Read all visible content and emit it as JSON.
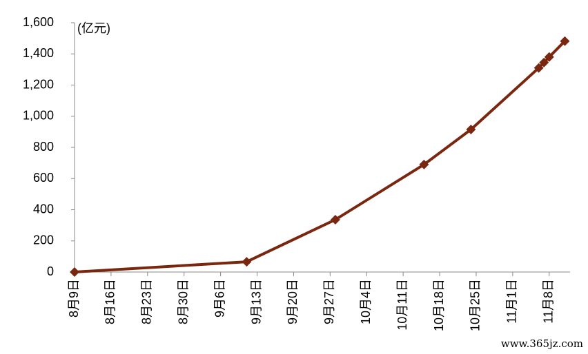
{
  "chart_data": {
    "type": "line",
    "y_unit_label": "(亿元)",
    "x": [
      "8月9日",
      "9月11日",
      "9月28日",
      "10月15日",
      "10月24日",
      "11月6日",
      "11月7日",
      "11月8日",
      "11月11日"
    ],
    "series": [
      {
        "color": "#7a2710",
        "values": [
          0,
          66,
          336,
          690,
          915,
          1310,
          1345,
          1380,
          1482
        ]
      }
    ],
    "xlim": [
      "8月9日",
      "11月12日"
    ],
    "xticks": [
      "8月9日",
      "8月16日",
      "8月23日",
      "8月30日",
      "9月6日",
      "9月13日",
      "9月20日",
      "9月27日",
      "10月4日",
      "10月11日",
      "10月18日",
      "10月25日",
      "11月1日",
      "11月8日"
    ],
    "ylim": [
      0,
      1600
    ],
    "yticks": [
      0,
      200,
      400,
      600,
      800,
      {
        "value": 1000,
        "label": "1,000"
      },
      {
        "value": 1200,
        "label": "1,200"
      },
      {
        "value": 1400,
        "label": "1,400"
      },
      {
        "value": 1600,
        "label": "1,600"
      }
    ],
    "watermark": "www.365jz.com"
  }
}
